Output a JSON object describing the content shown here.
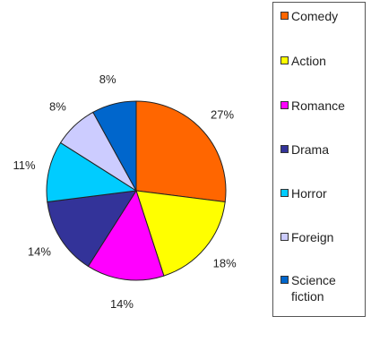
{
  "chart_data": {
    "type": "pie",
    "title": "",
    "legend_position": "right",
    "slices": [
      {
        "name": "Comedy",
        "value": 27,
        "label": "27%",
        "color": "#FF6600"
      },
      {
        "name": "Action",
        "value": 18,
        "label": "18%",
        "color": "#FFFF00"
      },
      {
        "name": "Romance",
        "value": 14,
        "label": "14%",
        "color": "#FF00FF"
      },
      {
        "name": "Drama",
        "value": 14,
        "label": "14%",
        "color": "#333399"
      },
      {
        "name": "Horror",
        "value": 11,
        "label": "11%",
        "color": "#00CCFF"
      },
      {
        "name": "Foreign",
        "value": 8,
        "label": "8%",
        "color": "#CCCCFF"
      },
      {
        "name": "Science fiction",
        "value": 8,
        "label": "8%",
        "color": "#0066CC"
      }
    ],
    "legend_lines": [
      [
        "Comedy"
      ],
      [
        "Action"
      ],
      [
        "Romance"
      ],
      [
        "Drama"
      ],
      [
        "Horror"
      ],
      [
        "Foreign"
      ],
      [
        "Science",
        "fiction"
      ]
    ]
  }
}
